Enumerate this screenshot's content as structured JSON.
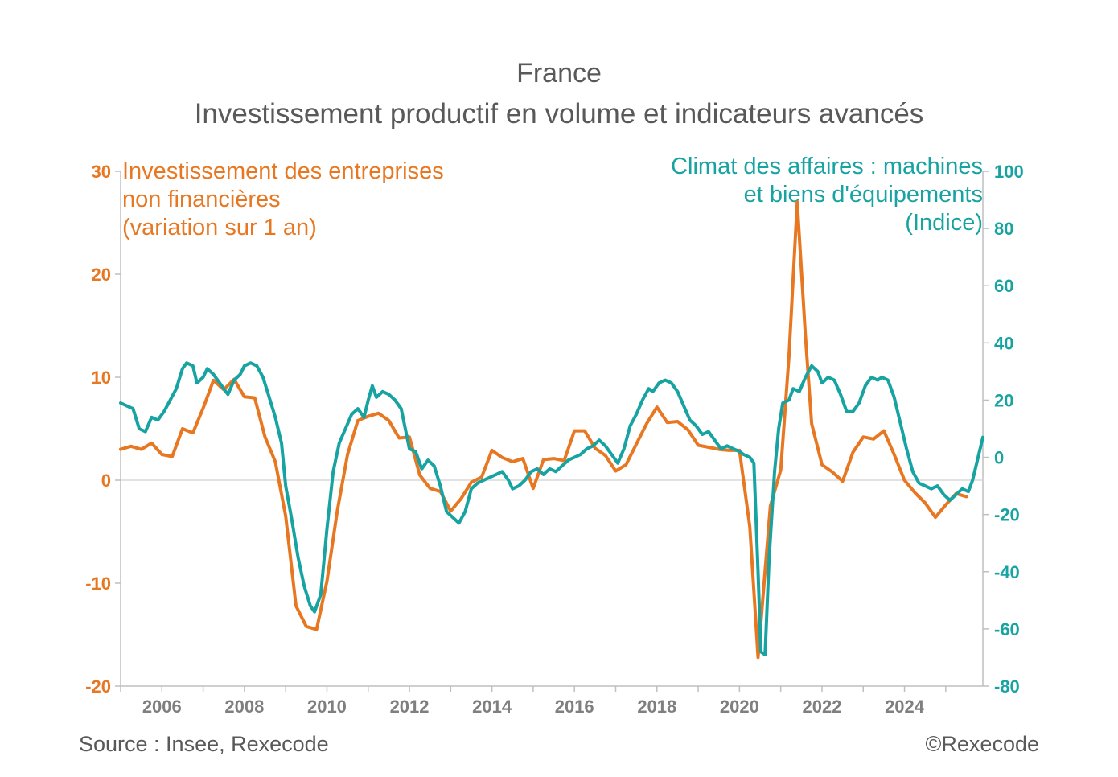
{
  "title": "France",
  "subtitle": "Investissement productif en volume et indicateurs avancés",
  "source": "Source : Insee, Rexecode",
  "copyright": "©Rexecode",
  "colors": {
    "investment": "#E87722",
    "climate": "#17A3A2",
    "axis": "#bfbfbf",
    "text": "#595959"
  },
  "chart_data": {
    "type": "line",
    "title": "France — Investissement productif en volume et indicateurs avancés",
    "x_range": [
      2005.0,
      2025.9
    ],
    "x_ticks": [
      "2006",
      "2008",
      "2010",
      "2012",
      "2014",
      "2016",
      "2018",
      "2020",
      "2022",
      "2024"
    ],
    "y_left": {
      "label": "Investissement des entreprises\nnon financières\n(variation sur 1 an)",
      "range": [
        -20,
        30
      ],
      "ticks": [
        "-20",
        "-10",
        "0",
        "10",
        "20",
        "30"
      ]
    },
    "y_right": {
      "label": "Climat des affaires : machines\net biens d'équipements\n(Indice)",
      "range": [
        -80,
        100
      ],
      "ticks": [
        "-80",
        "-60",
        "-40",
        "-20",
        "0",
        "20",
        "40",
        "60",
        "80",
        "100"
      ]
    },
    "series": [
      {
        "name": "Investissement des entreprises non financières (variation sur 1 an)",
        "axis": "left",
        "points": [
          [
            2005.0,
            3.0
          ],
          [
            2005.25,
            3.3
          ],
          [
            2005.5,
            3.0
          ],
          [
            2005.75,
            3.6
          ],
          [
            2006.0,
            2.5
          ],
          [
            2006.25,
            2.3
          ],
          [
            2006.5,
            5.0
          ],
          [
            2006.75,
            4.6
          ],
          [
            2007.0,
            7.0
          ],
          [
            2007.25,
            9.7
          ],
          [
            2007.5,
            8.8
          ],
          [
            2007.75,
            9.8
          ],
          [
            2008.0,
            8.1
          ],
          [
            2008.25,
            8.0
          ],
          [
            2008.5,
            4.2
          ],
          [
            2008.75,
            1.8
          ],
          [
            2009.0,
            -3.5
          ],
          [
            2009.25,
            -12.2
          ],
          [
            2009.5,
            -14.2
          ],
          [
            2009.75,
            -14.5
          ],
          [
            2010.0,
            -9.8
          ],
          [
            2010.25,
            -3.0
          ],
          [
            2010.5,
            2.5
          ],
          [
            2010.75,
            5.8
          ],
          [
            2011.0,
            6.2
          ],
          [
            2011.25,
            6.5
          ],
          [
            2011.5,
            5.8
          ],
          [
            2011.75,
            4.1
          ],
          [
            2012.0,
            4.2
          ],
          [
            2012.25,
            0.5
          ],
          [
            2012.5,
            -0.8
          ],
          [
            2012.75,
            -1.1
          ],
          [
            2013.0,
            -3.0
          ],
          [
            2013.25,
            -1.8
          ],
          [
            2013.5,
            -0.2
          ],
          [
            2013.75,
            0.3
          ],
          [
            2014.0,
            2.9
          ],
          [
            2014.25,
            2.2
          ],
          [
            2014.5,
            1.8
          ],
          [
            2014.75,
            2.1
          ],
          [
            2015.0,
            -0.8
          ],
          [
            2015.25,
            2.0
          ],
          [
            2015.5,
            2.1
          ],
          [
            2015.75,
            1.9
          ],
          [
            2016.0,
            4.8
          ],
          [
            2016.25,
            4.8
          ],
          [
            2016.5,
            3.1
          ],
          [
            2016.75,
            2.4
          ],
          [
            2017.0,
            0.9
          ],
          [
            2017.25,
            1.5
          ],
          [
            2017.5,
            3.5
          ],
          [
            2017.75,
            5.5
          ],
          [
            2018.0,
            7.1
          ],
          [
            2018.25,
            5.6
          ],
          [
            2018.5,
            5.7
          ],
          [
            2018.75,
            4.9
          ],
          [
            2019.0,
            3.4
          ],
          [
            2019.25,
            3.2
          ],
          [
            2019.5,
            3.0
          ],
          [
            2019.75,
            2.9
          ],
          [
            2020.0,
            2.9
          ],
          [
            2020.25,
            -4.5
          ],
          [
            2020.45,
            -17.2
          ],
          [
            2020.75,
            -2.5
          ],
          [
            2021.0,
            1.0
          ],
          [
            2021.2,
            12.0
          ],
          [
            2021.4,
            27.0
          ],
          [
            2021.6,
            14.0
          ],
          [
            2021.75,
            5.5
          ],
          [
            2022.0,
            1.5
          ],
          [
            2022.25,
            0.8
          ],
          [
            2022.5,
            -0.1
          ],
          [
            2022.75,
            2.7
          ],
          [
            2023.0,
            4.2
          ],
          [
            2023.25,
            4.0
          ],
          [
            2023.5,
            4.8
          ],
          [
            2023.75,
            2.5
          ],
          [
            2024.0,
            0.0
          ],
          [
            2024.25,
            -1.2
          ],
          [
            2024.5,
            -2.2
          ],
          [
            2024.75,
            -3.6
          ],
          [
            2025.0,
            -2.4
          ],
          [
            2025.25,
            -1.3
          ],
          [
            2025.5,
            -1.6
          ]
        ]
      },
      {
        "name": "Climat des affaires : machines et biens d'équipements (Indice)",
        "axis": "right",
        "points": [
          [
            2005.0,
            19.0
          ],
          [
            2005.15,
            18.0
          ],
          [
            2005.3,
            17.0
          ],
          [
            2005.45,
            10.0
          ],
          [
            2005.6,
            9.0
          ],
          [
            2005.75,
            14.0
          ],
          [
            2005.9,
            13.0
          ],
          [
            2006.05,
            16.0
          ],
          [
            2006.2,
            20.0
          ],
          [
            2006.35,
            24.0
          ],
          [
            2006.5,
            31.0
          ],
          [
            2006.6,
            33.0
          ],
          [
            2006.75,
            32.0
          ],
          [
            2006.85,
            26.0
          ],
          [
            2007.0,
            28.0
          ],
          [
            2007.1,
            31.0
          ],
          [
            2007.25,
            29.0
          ],
          [
            2007.4,
            26.0
          ],
          [
            2007.5,
            24.0
          ],
          [
            2007.6,
            22.0
          ],
          [
            2007.75,
            27.0
          ],
          [
            2007.9,
            29.0
          ],
          [
            2008.0,
            32.0
          ],
          [
            2008.15,
            33.0
          ],
          [
            2008.3,
            32.0
          ],
          [
            2008.45,
            28.0
          ],
          [
            2008.6,
            21.0
          ],
          [
            2008.75,
            14.0
          ],
          [
            2008.9,
            5.0
          ],
          [
            2009.0,
            -10.0
          ],
          [
            2009.15,
            -22.0
          ],
          [
            2009.3,
            -35.0
          ],
          [
            2009.45,
            -45.0
          ],
          [
            2009.6,
            -52.0
          ],
          [
            2009.7,
            -54.0
          ],
          [
            2009.85,
            -48.0
          ],
          [
            2010.0,
            -25.0
          ],
          [
            2010.15,
            -5.0
          ],
          [
            2010.3,
            5.0
          ],
          [
            2010.45,
            10.0
          ],
          [
            2010.6,
            15.0
          ],
          [
            2010.75,
            17.0
          ],
          [
            2010.9,
            14.0
          ],
          [
            2011.0,
            20.0
          ],
          [
            2011.1,
            25.0
          ],
          [
            2011.2,
            21.0
          ],
          [
            2011.35,
            23.0
          ],
          [
            2011.5,
            22.0
          ],
          [
            2011.65,
            20.0
          ],
          [
            2011.8,
            17.0
          ],
          [
            2012.0,
            3.0
          ],
          [
            2012.15,
            2.0
          ],
          [
            2012.3,
            -4.0
          ],
          [
            2012.45,
            -1.0
          ],
          [
            2012.6,
            -3.0
          ],
          [
            2012.75,
            -10.0
          ],
          [
            2012.9,
            -19.0
          ],
          [
            2013.05,
            -21.0
          ],
          [
            2013.2,
            -23.0
          ],
          [
            2013.35,
            -19.0
          ],
          [
            2013.5,
            -11.0
          ],
          [
            2013.65,
            -9.0
          ],
          [
            2013.8,
            -8.0
          ],
          [
            2013.95,
            -7.0
          ],
          [
            2014.1,
            -6.0
          ],
          [
            2014.25,
            -5.0
          ],
          [
            2014.4,
            -8.0
          ],
          [
            2014.5,
            -11.0
          ],
          [
            2014.65,
            -10.0
          ],
          [
            2014.8,
            -8.0
          ],
          [
            2014.95,
            -5.0
          ],
          [
            2015.1,
            -4.0
          ],
          [
            2015.25,
            -6.0
          ],
          [
            2015.4,
            -4.0
          ],
          [
            2015.55,
            -5.0
          ],
          [
            2015.7,
            -3.0
          ],
          [
            2015.85,
            -1.0
          ],
          [
            2016.0,
            0.0
          ],
          [
            2016.15,
            1.0
          ],
          [
            2016.3,
            3.0
          ],
          [
            2016.45,
            4.0
          ],
          [
            2016.6,
            6.0
          ],
          [
            2016.75,
            4.0
          ],
          [
            2016.9,
            1.0
          ],
          [
            2017.05,
            -2.0
          ],
          [
            2017.2,
            3.0
          ],
          [
            2017.35,
            11.0
          ],
          [
            2017.5,
            15.0
          ],
          [
            2017.65,
            20.0
          ],
          [
            2017.8,
            24.0
          ],
          [
            2017.9,
            23.0
          ],
          [
            2018.05,
            26.0
          ],
          [
            2018.2,
            27.0
          ],
          [
            2018.35,
            26.0
          ],
          [
            2018.5,
            23.0
          ],
          [
            2018.65,
            18.0
          ],
          [
            2018.8,
            13.0
          ],
          [
            2018.95,
            11.0
          ],
          [
            2019.1,
            8.0
          ],
          [
            2019.25,
            9.0
          ],
          [
            2019.4,
            6.0
          ],
          [
            2019.55,
            3.0
          ],
          [
            2019.7,
            4.0
          ],
          [
            2019.85,
            3.0
          ],
          [
            2020.0,
            2.0
          ],
          [
            2020.1,
            1.0
          ],
          [
            2020.25,
            0.0
          ],
          [
            2020.35,
            -2.0
          ],
          [
            2020.45,
            -40.0
          ],
          [
            2020.52,
            -68.0
          ],
          [
            2020.62,
            -69.0
          ],
          [
            2020.72,
            -35.0
          ],
          [
            2020.85,
            -5.0
          ],
          [
            2020.95,
            10.0
          ],
          [
            2021.05,
            19.0
          ],
          [
            2021.2,
            20.0
          ],
          [
            2021.3,
            24.0
          ],
          [
            2021.45,
            23.0
          ],
          [
            2021.6,
            28.0
          ],
          [
            2021.75,
            32.0
          ],
          [
            2021.9,
            30.0
          ],
          [
            2022.0,
            26.0
          ],
          [
            2022.15,
            28.0
          ],
          [
            2022.3,
            27.0
          ],
          [
            2022.45,
            22.0
          ],
          [
            2022.6,
            16.0
          ],
          [
            2022.75,
            16.0
          ],
          [
            2022.9,
            19.0
          ],
          [
            2023.05,
            25.0
          ],
          [
            2023.2,
            28.0
          ],
          [
            2023.35,
            27.0
          ],
          [
            2023.45,
            28.0
          ],
          [
            2023.6,
            27.0
          ],
          [
            2023.75,
            21.0
          ],
          [
            2023.9,
            12.0
          ],
          [
            2024.05,
            3.0
          ],
          [
            2024.2,
            -5.0
          ],
          [
            2024.35,
            -9.0
          ],
          [
            2024.5,
            -10.0
          ],
          [
            2024.65,
            -11.0
          ],
          [
            2024.8,
            -10.0
          ],
          [
            2024.95,
            -13.0
          ],
          [
            2025.1,
            -15.0
          ],
          [
            2025.25,
            -13.0
          ],
          [
            2025.4,
            -11.0
          ],
          [
            2025.55,
            -12.0
          ],
          [
            2025.65,
            -8.0
          ],
          [
            2025.8,
            1.0
          ],
          [
            2025.9,
            7.0
          ]
        ]
      }
    ]
  }
}
